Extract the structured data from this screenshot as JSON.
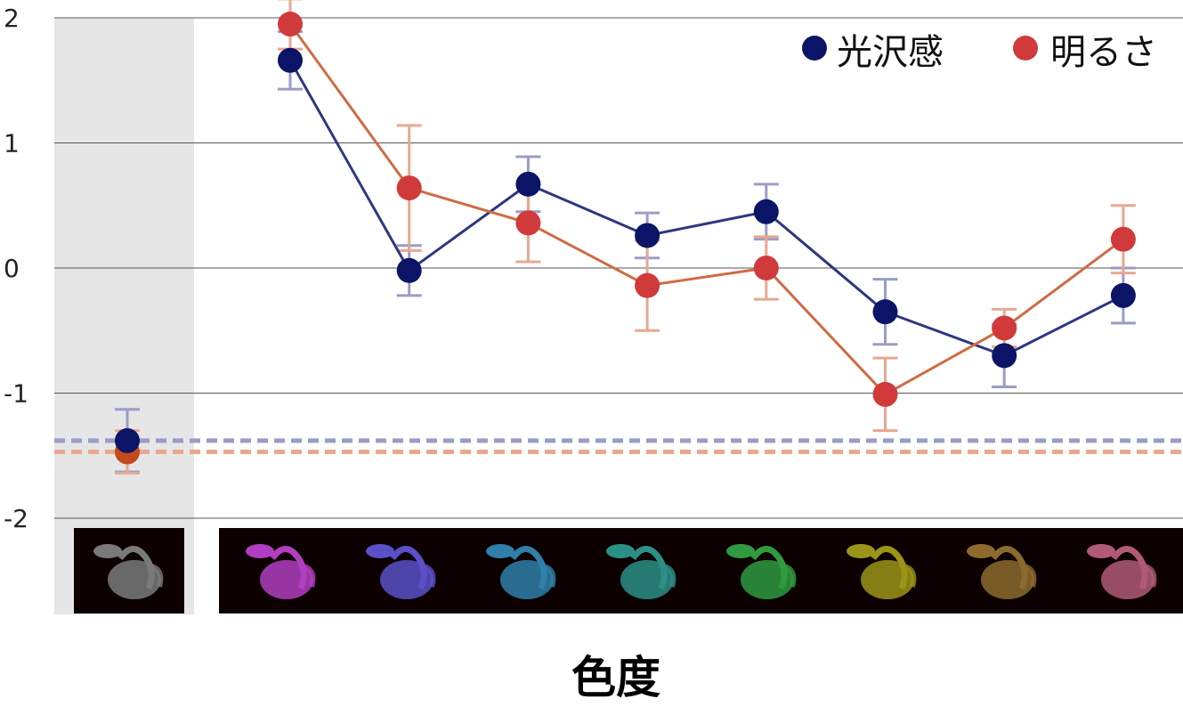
{
  "chart_data": {
    "type": "line",
    "xlabel": "色度",
    "ylabel": "",
    "ylim": [
      -2,
      2
    ],
    "yticks": [
      2,
      1,
      0,
      -1,
      -2
    ],
    "grid": "horizontal",
    "legend_position": "top-right",
    "reference": {
      "category": "gray",
      "shaded": true,
      "glossiness_mean": -1.38,
      "glossiness_err": 0.25,
      "brightness_mean": -1.47,
      "brightness_err": 0.17
    },
    "categories": [
      "purple",
      "blue-violet",
      "blue",
      "teal",
      "green",
      "yellow",
      "orange",
      "pink"
    ],
    "thumbnail_colors": [
      "#7a7a7a",
      "#b03ec0",
      "#5b50c8",
      "#2f7fa8",
      "#2c8f86",
      "#2f9a3f",
      "#9a9418",
      "#8c6a2e",
      "#b05a78"
    ],
    "series": [
      {
        "name": "光沢感",
        "color": "#0b1466",
        "line_color": "#2e3780",
        "error_color": "#9a9cc8",
        "baseline": -1.38,
        "values": [
          1.66,
          -0.02,
          0.67,
          0.26,
          0.45,
          -0.35,
          -0.7,
          -0.22
        ],
        "errors": [
          0.23,
          0.2,
          0.22,
          0.18,
          0.22,
          0.26,
          0.25,
          0.22
        ]
      },
      {
        "name": "明るさ",
        "color": "#d13a3a",
        "line_color": "#cf6b42",
        "error_color": "#e8a890",
        "baseline": -1.47,
        "values": [
          1.95,
          0.64,
          0.36,
          -0.14,
          0.0,
          -1.01,
          -0.48,
          0.23
        ],
        "errors": [
          0.2,
          0.5,
          0.31,
          0.36,
          0.25,
          0.29,
          0.15,
          0.27
        ]
      }
    ]
  }
}
